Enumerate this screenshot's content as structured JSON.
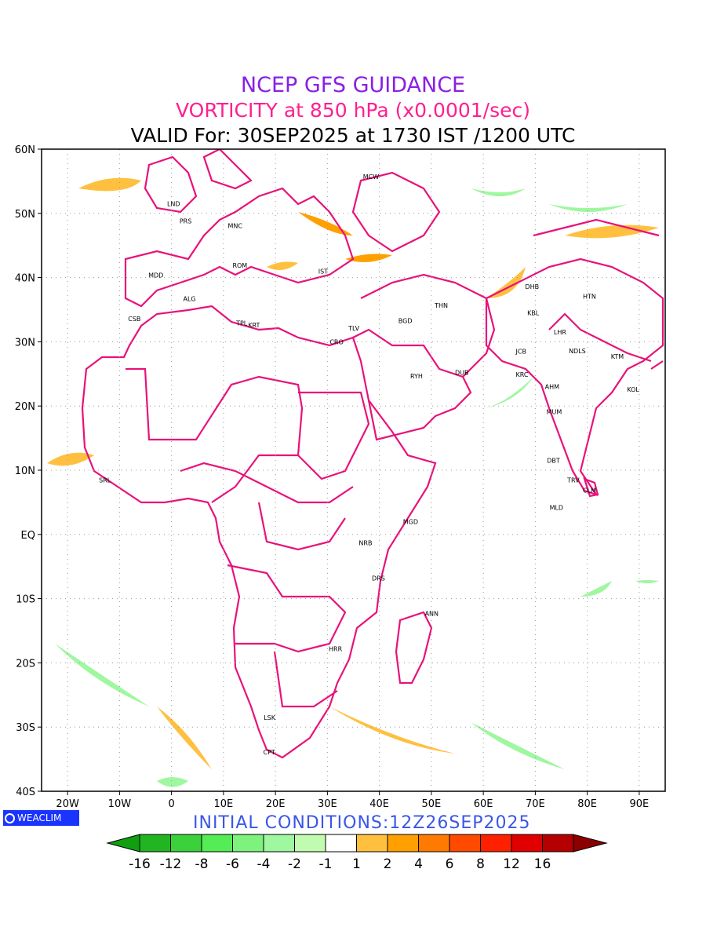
{
  "header": {
    "line1": "NCEP GFS GUIDANCE",
    "line2": "VORTICITY at 850 hPa (x0.0001/sec)",
    "line3": "VALID For: 30SEP2025 at 1730 IST /1200 UTC",
    "line1_color": "#8a1fe6",
    "line2_color": "#ff1f8f"
  },
  "map": {
    "extent": {
      "lon_min": -25,
      "lon_max": 95,
      "lat_min": -40,
      "lat_max": 60
    },
    "boundary_color": "#e8127a",
    "lat_labels": [
      {
        "lat": 60,
        "text": "60N"
      },
      {
        "lat": 50,
        "text": "50N"
      },
      {
        "lat": 40,
        "text": "40N"
      },
      {
        "lat": 30,
        "text": "30N"
      },
      {
        "lat": 20,
        "text": "20N"
      },
      {
        "lat": 10,
        "text": "10N"
      },
      {
        "lat": 0,
        "text": "EQ"
      },
      {
        "lat": -10,
        "text": "10S"
      },
      {
        "lat": -20,
        "text": "20S"
      },
      {
        "lat": -30,
        "text": "30S"
      },
      {
        "lat": -40,
        "text": "40S"
      }
    ],
    "lon_labels": [
      {
        "lon": -20,
        "text": "20W"
      },
      {
        "lon": -10,
        "text": "10W"
      },
      {
        "lon": 0,
        "text": "0"
      },
      {
        "lon": 10,
        "text": "10E"
      },
      {
        "lon": 20,
        "text": "20E"
      },
      {
        "lon": 30,
        "text": "30E"
      },
      {
        "lon": 40,
        "text": "40E"
      },
      {
        "lon": 50,
        "text": "50E"
      },
      {
        "lon": 60,
        "text": "60E"
      },
      {
        "lon": 70,
        "text": "70E"
      },
      {
        "lon": 80,
        "text": "80E"
      },
      {
        "lon": 90,
        "text": "90E"
      }
    ],
    "cities": [
      {
        "code": "MCW",
        "lon": 37.6,
        "lat": 55.7
      },
      {
        "code": "LND",
        "lon": -0.1,
        "lat": 51.5
      },
      {
        "code": "PRS",
        "lon": 2.3,
        "lat": 48.8
      },
      {
        "code": "MNC",
        "lon": 11.6,
        "lat": 48.1
      },
      {
        "code": "ROM",
        "lon": 12.5,
        "lat": 41.9
      },
      {
        "code": "MDD",
        "lon": -3.7,
        "lat": 40.4
      },
      {
        "code": "IST",
        "lon": 29.0,
        "lat": 41.0
      },
      {
        "code": "ALG",
        "lon": 3.0,
        "lat": 36.7
      },
      {
        "code": "CSB",
        "lon": -7.6,
        "lat": 33.6
      },
      {
        "code": "TPL",
        "lon": 13.2,
        "lat": 32.9
      },
      {
        "code": "KRT",
        "lon": 15.5,
        "lat": 32.6
      },
      {
        "code": "TLV",
        "lon": 34.8,
        "lat": 32.1
      },
      {
        "code": "CRO",
        "lon": 31.2,
        "lat": 30.0
      },
      {
        "code": "BGD",
        "lon": 44.4,
        "lat": 33.3
      },
      {
        "code": "THN",
        "lon": 51.4,
        "lat": 35.7
      },
      {
        "code": "RYH",
        "lon": 46.7,
        "lat": 24.7
      },
      {
        "code": "DUB",
        "lon": 55.3,
        "lat": 25.2
      },
      {
        "code": "DHB",
        "lon": 68.8,
        "lat": 38.6
      },
      {
        "code": "KBL",
        "lon": 69.2,
        "lat": 34.5
      },
      {
        "code": "LHR",
        "lon": 74.3,
        "lat": 31.5
      },
      {
        "code": "HTN",
        "lon": 79.9,
        "lat": 37.1
      },
      {
        "code": "NDLS",
        "lon": 77.2,
        "lat": 28.6
      },
      {
        "code": "KTM",
        "lon": 85.3,
        "lat": 27.7
      },
      {
        "code": "JCB",
        "lon": 67.0,
        "lat": 28.5
      },
      {
        "code": "KRC",
        "lon": 67.0,
        "lat": 24.9
      },
      {
        "code": "AHM",
        "lon": 72.6,
        "lat": 23.0
      },
      {
        "code": "KOL",
        "lon": 88.4,
        "lat": 22.6
      },
      {
        "code": "MUM",
        "lon": 72.9,
        "lat": 19.1
      },
      {
        "code": "DBT",
        "lon": 73.0,
        "lat": 11.5
      },
      {
        "code": "TRV",
        "lon": 76.9,
        "lat": 8.5
      },
      {
        "code": "CLM",
        "lon": 79.9,
        "lat": 6.9
      },
      {
        "code": "MLD",
        "lon": 73.5,
        "lat": 4.2
      },
      {
        "code": "SRL",
        "lon": -13.2,
        "lat": 8.5
      },
      {
        "code": "MGD",
        "lon": 45.3,
        "lat": 2.0
      },
      {
        "code": "NRB",
        "lon": 36.8,
        "lat": -1.3
      },
      {
        "code": "DRS",
        "lon": 39.3,
        "lat": -6.8
      },
      {
        "code": "ANN",
        "lon": 49.5,
        "lat": -12.3
      },
      {
        "code": "HRR",
        "lon": 31.0,
        "lat": -17.8
      },
      {
        "code": "LSK",
        "lon": 18.5,
        "lat": -28.5
      },
      {
        "code": "CPT",
        "lon": 18.4,
        "lat": -33.9
      }
    ]
  },
  "colorbar": {
    "colors": [
      "#0f9f0f",
      "#22b522",
      "#3bd13b",
      "#55ed55",
      "#7df27d",
      "#9ff79f",
      "#c0fbb0",
      "#ffffff",
      "#ffc040",
      "#ffa000",
      "#ff7a00",
      "#ff4a00",
      "#ff2000",
      "#e00000",
      "#b40000",
      "#8c0000"
    ],
    "labels": [
      "-16",
      "-12",
      "-8",
      "-6",
      "-4",
      "-2",
      "-1",
      "1",
      "2",
      "4",
      "6",
      "8",
      "12",
      "16"
    ]
  },
  "footer": {
    "logo_text": "WEACLIM",
    "init_text": "INITIAL CONDITIONS:12Z26SEP2025",
    "init_color": "#3a56e8"
  }
}
